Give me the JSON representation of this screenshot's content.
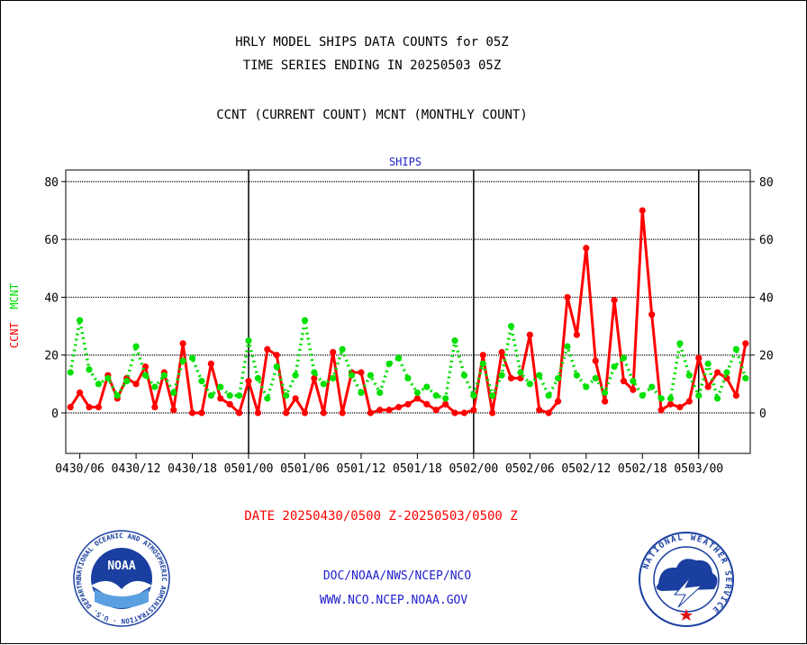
{
  "header": {
    "title_line1": "HRLY MODEL SHIPS DATA COUNTS for 05Z",
    "title_line2": "TIME SERIES ENDING IN 20250503 05Z",
    "subtitle": "CCNT (CURRENT COUNT) MCNT (MONTHLY COUNT)"
  },
  "footer": {
    "date_range": "DATE 20250430/0500 Z-20250503/0500 Z",
    "credit_org": "DOC/NOAA/NWS/NCEP/NCO",
    "credit_url": "WWW.NCO.NCEP.NOAA.GOV"
  },
  "logos": {
    "left_text": "NOAA",
    "left_ring_text": "NATIONAL OCEANIC AND ATMOSPHERIC ADMINISTRATION · U.S. DEPARTMENT OF COMMERCE",
    "right_ring_text": "NATIONAL WEATHER SERVICE"
  },
  "colors": {
    "ccnt": "#ff0000",
    "mcnt": "#00e000",
    "panel_label": "#2020cc",
    "credits": "#2020cc",
    "noaa_blue": "#1a3fa0",
    "nws_blue": "#1a3fa0"
  },
  "chart_data": {
    "type": "line",
    "panel_label": "SHIPS",
    "ylabel_parts": [
      "CCNT",
      "MCNT"
    ],
    "ylim": [
      -14,
      84
    ],
    "yticks": [
      0,
      20,
      40,
      60,
      80
    ],
    "xlim": [
      -0.5,
      72.5
    ],
    "x_unit": "hours after 0430/05",
    "xtick_positions": [
      1,
      7,
      13,
      19,
      25,
      31,
      37,
      43,
      49,
      55,
      61,
      67,
      73
    ],
    "xtick_labels": [
      "0430/06",
      "0430/12",
      "0430/18",
      "0501/00",
      "0501/06",
      "0501/12",
      "0501/18",
      "0502/00",
      "0502/06",
      "0502/12",
      "0502/18",
      "0503/00",
      ""
    ],
    "day_boundaries": [
      19,
      43,
      67
    ],
    "grid": true,
    "series": [
      {
        "name": "CCNT",
        "color": "#ff0000",
        "values": [
          2,
          7,
          2,
          2,
          13,
          5,
          12,
          10,
          16,
          2,
          14,
          1,
          24,
          0,
          0,
          17,
          5,
          3,
          0,
          11,
          0,
          22,
          20,
          0,
          5,
          0,
          12,
          0,
          21,
          0,
          14,
          14,
          0,
          1,
          1,
          2,
          3,
          5,
          3,
          1,
          3,
          0,
          0,
          1,
          20,
          0,
          21,
          12,
          12,
          27,
          1,
          0,
          4,
          40,
          27,
          57,
          18,
          4,
          39,
          11,
          8,
          70,
          34,
          1,
          3,
          2,
          4,
          19,
          9,
          14,
          12,
          6,
          24
        ]
      },
      {
        "name": "MCNT",
        "color": "#00e000",
        "values": [
          14,
          32,
          15,
          10,
          12,
          6,
          11,
          23,
          13,
          9,
          13,
          7,
          18,
          19,
          11,
          6,
          9,
          6,
          6,
          25,
          12,
          5,
          16,
          6,
          13,
          32,
          14,
          10,
          12,
          22,
          13,
          7,
          13,
          7,
          17,
          19,
          12,
          7,
          9,
          6,
          5,
          25,
          13,
          6,
          17,
          6,
          13,
          30,
          14,
          10,
          13,
          6,
          12,
          23,
          13,
          9,
          12,
          7,
          16,
          19,
          11,
          6,
          9,
          5,
          5,
          24,
          13,
          6,
          17,
          5,
          14,
          22,
          12
        ]
      }
    ]
  }
}
